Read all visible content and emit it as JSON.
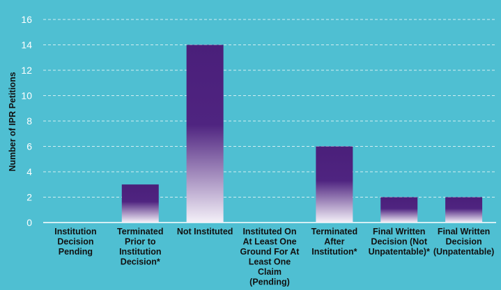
{
  "chart_data": {
    "type": "bar",
    "ylabel": "Number of IPR Petitions",
    "ylim": [
      0,
      16
    ],
    "yticks": [
      0,
      2,
      4,
      6,
      8,
      10,
      12,
      14,
      16
    ],
    "grid": true,
    "categories": [
      [
        "Institution",
        "Decision",
        "Pending"
      ],
      [
        "Terminated",
        "Prior to",
        "Institution",
        "Decision*"
      ],
      [
        "Not Instituted"
      ],
      [
        "Instituted On",
        "At Least One",
        "Ground For At",
        "Least One",
        "Claim",
        "(Pending)"
      ],
      [
        "Terminated",
        "After",
        "Institution*"
      ],
      [
        "Final Written",
        "Decision (Not",
        "Unpatentable)*"
      ],
      [
        "Final Written",
        "Decision",
        "(Unpatentable)"
      ]
    ],
    "values": [
      0,
      3,
      14,
      0,
      6,
      2,
      2
    ],
    "colors": {
      "bar_top": "#4a1f7a",
      "bar_bottom": "#f4f0f8",
      "background": "#4fbfd2",
      "grid": "#ffffff"
    }
  }
}
